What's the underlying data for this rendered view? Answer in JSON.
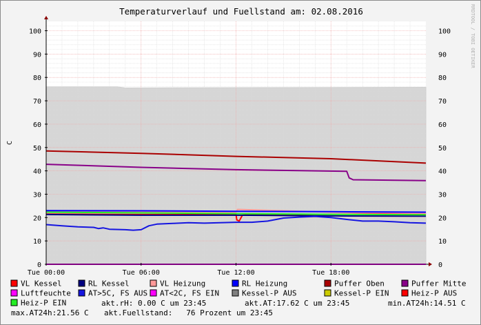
{
  "chart_data": {
    "type": "line",
    "title": "Temperaturverlauf und Fuellstand am: 02.08.2016",
    "ylabel": "C",
    "watermark": "RRDTOOL / TOBI OETIKER",
    "ylim": [
      0,
      104
    ],
    "y_ticks": [
      0,
      10,
      20,
      30,
      40,
      50,
      60,
      70,
      80,
      90,
      100
    ],
    "x_unit": "hours",
    "xlim": [
      0,
      24
    ],
    "x_ticks": [
      {
        "value": 0,
        "label": "Tue 00:00"
      },
      {
        "value": 6,
        "label": "Tue 06:00"
      },
      {
        "value": 12,
        "label": "Tue 12:00"
      },
      {
        "value": 18,
        "label": "Tue 18:00"
      }
    ],
    "grid": true,
    "legend_position": "bottom",
    "area": {
      "name": "Fuellstand",
      "color": "#d6d6d6",
      "x": [
        0,
        4.5,
        5,
        24
      ],
      "y": [
        76,
        76,
        75.5,
        75.8
      ]
    },
    "series": [
      {
        "name": "VL Kessel",
        "color": "#ff0000",
        "x": [
          0,
          6,
          12,
          12.05,
          12.2,
          12.4,
          13,
          18,
          24
        ],
        "y": [
          21.5,
          21.3,
          21.3,
          19,
          18.5,
          21,
          21.4,
          21.4,
          21.6
        ]
      },
      {
        "name": "RL Kessel",
        "color": "#000080",
        "x": [
          0,
          6,
          12,
          18,
          24
        ],
        "y": [
          21.3,
          21,
          21,
          20.7,
          20.6
        ]
      },
      {
        "name": "VL Heizung",
        "color": "#ff9999",
        "x": [
          0,
          6,
          12,
          12.1,
          18,
          24
        ],
        "y": [
          22.5,
          22.4,
          22.3,
          23.5,
          22.3,
          21.8
        ]
      },
      {
        "name": "RL Heizung",
        "color": "#0000ff",
        "x": [
          0,
          6,
          12,
          18,
          24
        ],
        "y": [
          23,
          22.9,
          22.7,
          22.5,
          22.3
        ]
      },
      {
        "name": "Puffer Oben",
        "color": "#aa0000",
        "x": [
          0,
          6,
          12,
          18,
          24
        ],
        "y": [
          48.5,
          47.5,
          46.2,
          45.2,
          43.3
        ]
      },
      {
        "name": "Puffer Mitte",
        "color": "#880088",
        "x": [
          0,
          6,
          12,
          19,
          19.15,
          19.4,
          24
        ],
        "y": [
          42.8,
          41.5,
          40.5,
          39.8,
          37,
          36.2,
          35.8
        ]
      },
      {
        "name": "Luftfeuchte",
        "color": "#ff00ff",
        "x": [
          0,
          24
        ],
        "y": [
          0,
          0
        ]
      },
      {
        "name": "AT>5C, FS AUS",
        "color": "#1515e0",
        "x": [
          0,
          1,
          2,
          3,
          3.3,
          3.6,
          4,
          5,
          5.5,
          6,
          6.5,
          7,
          8,
          9,
          10,
          11,
          12,
          13,
          14,
          15,
          16,
          17,
          18,
          19,
          20,
          21,
          22,
          23,
          24
        ],
        "y": [
          17,
          16.5,
          16,
          15.8,
          15.3,
          15.6,
          15,
          14.8,
          14.6,
          14.8,
          16.5,
          17.2,
          17.5,
          17.8,
          17.6,
          17.8,
          18,
          18,
          18.5,
          19.8,
          20.2,
          20.5,
          20,
          19.2,
          18.5,
          18.5,
          18.2,
          17.8,
          17.6
        ]
      },
      {
        "name": "AT<2C, FS EIN",
        "color": "#ff00ff",
        "x": [],
        "y": []
      },
      {
        "name": "Kessel-P AUS",
        "color": "#808080",
        "x": [],
        "y": []
      },
      {
        "name": "Kessel-P EIN",
        "color": "#cccc00",
        "x": [],
        "y": []
      },
      {
        "name": "Heiz-P AUS",
        "color": "#ff0000",
        "x": [],
        "y": []
      },
      {
        "name": "Heiz-P EIN",
        "color": "#22ee22",
        "x": [
          0,
          6,
          12,
          18,
          24
        ],
        "y": [
          22.3,
          22,
          21.7,
          21.4,
          21.2
        ]
      }
    ],
    "footer": [
      "akt.rH: 0.00 C um 23:45",
      "akt.AT:17.62 C um 23:45",
      "min.AT24h:14.51 C",
      "max.AT24h:21.56 C",
      "akt.Fuellstand:   76 Prozent um 23:45"
    ]
  }
}
